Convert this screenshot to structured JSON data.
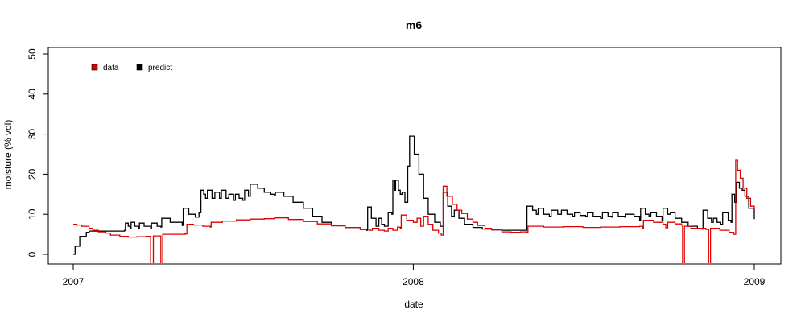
{
  "chart_data": {
    "type": "line",
    "title": "m6",
    "xlabel": "date",
    "ylabel": "moisture (% vol)",
    "xlim": [
      "2007-01-01",
      "2009-01-01"
    ],
    "ylim": [
      0,
      50
    ],
    "x_ticks": [
      "2007",
      "2008",
      "2009"
    ],
    "x_tick_dates": [
      "2007-01-01",
      "2008-01-01",
      "2009-01-01"
    ],
    "y_ticks": [
      0,
      10,
      20,
      30,
      40,
      50
    ],
    "grid": false,
    "legend_position": "top-left",
    "series": [
      {
        "name": "data",
        "color": "#dd0000",
        "points": [
          [
            "2007-01-01",
            7.5
          ],
          [
            "2007-01-05",
            7.3
          ],
          [
            "2007-01-10",
            7.0
          ],
          [
            "2007-01-15",
            7.0
          ],
          [
            "2007-01-18",
            6.5
          ],
          [
            "2007-01-22",
            6.0
          ],
          [
            "2007-01-28",
            5.6
          ],
          [
            "2007-02-05",
            5.3
          ],
          [
            "2007-02-10",
            4.8
          ],
          [
            "2007-02-20",
            4.5
          ],
          [
            "2007-03-01",
            4.3
          ],
          [
            "2007-03-10",
            4.4
          ],
          [
            "2007-03-20",
            4.5
          ],
          [
            "2007-03-24",
            4.5
          ],
          [
            "2007-03-25",
            -2.5
          ],
          [
            "2007-03-27",
            -2.5
          ],
          [
            "2007-03-28",
            4.6
          ],
          [
            "2007-04-04",
            4.6
          ],
          [
            "2007-04-05",
            -2.5
          ],
          [
            "2007-04-06",
            -2.5
          ],
          [
            "2007-04-07",
            5.0
          ],
          [
            "2007-04-20",
            5.0
          ],
          [
            "2007-05-01",
            5.1
          ],
          [
            "2007-05-03",
            7.5
          ],
          [
            "2007-05-10",
            7.3
          ],
          [
            "2007-05-20",
            7.0
          ],
          [
            "2007-05-28",
            6.8
          ],
          [
            "2007-05-29",
            8.0
          ],
          [
            "2007-06-10",
            8.3
          ],
          [
            "2007-06-25",
            8.6
          ],
          [
            "2007-07-10",
            8.8
          ],
          [
            "2007-07-25",
            8.9
          ],
          [
            "2007-08-05",
            9.1
          ],
          [
            "2007-08-20",
            8.7
          ],
          [
            "2007-09-05",
            8.2
          ],
          [
            "2007-09-20",
            7.6
          ],
          [
            "2007-10-05",
            7.1
          ],
          [
            "2007-10-20",
            6.7
          ],
          [
            "2007-11-05",
            6.3
          ],
          [
            "2007-11-15",
            6.0
          ],
          [
            "2007-11-18",
            6.5
          ],
          [
            "2007-11-25",
            6.0
          ],
          [
            "2007-12-01",
            5.8
          ],
          [
            "2007-12-05",
            6.5
          ],
          [
            "2007-12-10",
            6.0
          ],
          [
            "2007-12-15",
            6.8
          ],
          [
            "2007-12-18",
            6.5
          ],
          [
            "2007-12-19",
            9.8
          ],
          [
            "2007-12-25",
            8.5
          ],
          [
            "2008-01-01",
            8.0
          ],
          [
            "2008-01-05",
            9.0
          ],
          [
            "2008-01-09",
            7.0
          ],
          [
            "2008-01-12",
            9.5
          ],
          [
            "2008-01-17",
            7.5
          ],
          [
            "2008-01-22",
            6.0
          ],
          [
            "2008-01-28",
            5.3
          ],
          [
            "2008-01-31",
            4.8
          ],
          [
            "2008-02-02",
            17.0
          ],
          [
            "2008-02-06",
            14.5
          ],
          [
            "2008-02-12",
            12.5
          ],
          [
            "2008-02-17",
            11.0
          ],
          [
            "2008-02-22",
            10.2
          ],
          [
            "2008-02-28",
            8.8
          ],
          [
            "2008-03-05",
            8.0
          ],
          [
            "2008-03-10",
            7.2
          ],
          [
            "2008-03-18",
            6.5
          ],
          [
            "2008-03-25",
            6.1
          ],
          [
            "2008-04-05",
            5.6
          ],
          [
            "2008-04-15",
            5.5
          ],
          [
            "2008-04-25",
            5.6
          ],
          [
            "2008-05-02",
            5.5
          ],
          [
            "2008-05-03",
            7.0
          ],
          [
            "2008-05-20",
            6.8
          ],
          [
            "2008-06-10",
            6.9
          ],
          [
            "2008-07-01",
            6.7
          ],
          [
            "2008-07-20",
            6.8
          ],
          [
            "2008-08-10",
            6.9
          ],
          [
            "2008-08-31",
            7.0
          ],
          [
            "2008-09-03",
            6.5
          ],
          [
            "2008-09-04",
            8.5
          ],
          [
            "2008-09-15",
            8.0
          ],
          [
            "2008-09-25",
            7.5
          ],
          [
            "2008-09-28",
            6.6
          ],
          [
            "2008-09-30",
            8.0
          ],
          [
            "2008-10-08",
            7.6
          ],
          [
            "2008-10-15",
            7.3
          ],
          [
            "2008-10-16",
            -2.5
          ],
          [
            "2008-10-17",
            -2.5
          ],
          [
            "2008-10-18",
            7.0
          ],
          [
            "2008-10-25",
            6.5
          ],
          [
            "2008-11-10",
            6.2
          ],
          [
            "2008-11-13",
            -2.5
          ],
          [
            "2008-11-14",
            -2.5
          ],
          [
            "2008-11-15",
            6.5
          ],
          [
            "2008-11-25",
            6.0
          ],
          [
            "2008-12-05",
            5.5
          ],
          [
            "2008-12-10",
            5.0
          ],
          [
            "2008-12-12",
            23.5
          ],
          [
            "2008-12-14",
            21.0
          ],
          [
            "2008-12-17",
            19.0
          ],
          [
            "2008-12-20",
            16.5
          ],
          [
            "2008-12-24",
            14.0
          ],
          [
            "2008-12-28",
            12.0
          ],
          [
            "2009-01-01",
            11.2
          ]
        ]
      },
      {
        "name": "predict",
        "color": "#000000",
        "points": [
          [
            "2007-01-01",
            0.0
          ],
          [
            "2007-01-02",
            0.0
          ],
          [
            "2007-01-03",
            2.0
          ],
          [
            "2007-01-07",
            2.0
          ],
          [
            "2007-01-08",
            4.5
          ],
          [
            "2007-01-14",
            4.5
          ],
          [
            "2007-01-15",
            5.5
          ],
          [
            "2007-01-18",
            5.8
          ],
          [
            "2007-02-01",
            5.8
          ],
          [
            "2007-02-10",
            5.8
          ],
          [
            "2007-02-25",
            6.0
          ],
          [
            "2007-02-26",
            7.8
          ],
          [
            "2007-03-01",
            7.0
          ],
          [
            "2007-03-03",
            6.5
          ],
          [
            "2007-03-04",
            8.0
          ],
          [
            "2007-03-08",
            7.0
          ],
          [
            "2007-03-12",
            6.5
          ],
          [
            "2007-03-13",
            7.8
          ],
          [
            "2007-03-18",
            7.0
          ],
          [
            "2007-03-25",
            6.5
          ],
          [
            "2007-03-26",
            7.8
          ],
          [
            "2007-04-01",
            7.0
          ],
          [
            "2007-04-05",
            6.8
          ],
          [
            "2007-04-06",
            9.0
          ],
          [
            "2007-04-15",
            8.0
          ],
          [
            "2007-04-28",
            7.2
          ],
          [
            "2007-04-29",
            11.5
          ],
          [
            "2007-05-05",
            10.0
          ],
          [
            "2007-05-12",
            9.3
          ],
          [
            "2007-05-16",
            10.5
          ],
          [
            "2007-05-18",
            16.0
          ],
          [
            "2007-05-21",
            15.0
          ],
          [
            "2007-05-23",
            14.0
          ],
          [
            "2007-05-25",
            16.0
          ],
          [
            "2007-05-30",
            14.0
          ],
          [
            "2007-06-02",
            15.5
          ],
          [
            "2007-06-07",
            14.0
          ],
          [
            "2007-06-09",
            16.0
          ],
          [
            "2007-06-14",
            14.0
          ],
          [
            "2007-06-17",
            15.0
          ],
          [
            "2007-06-22",
            13.5
          ],
          [
            "2007-06-24",
            15.0
          ],
          [
            "2007-06-28",
            14.0
          ],
          [
            "2007-07-02",
            13.5
          ],
          [
            "2007-07-04",
            16.0
          ],
          [
            "2007-07-08",
            14.5
          ],
          [
            "2007-07-10",
            17.5
          ],
          [
            "2007-07-18",
            16.5
          ],
          [
            "2007-07-25",
            15.5
          ],
          [
            "2007-08-01",
            15.0
          ],
          [
            "2007-08-05",
            14.8
          ],
          [
            "2007-08-06",
            15.5
          ],
          [
            "2007-08-15",
            14.5
          ],
          [
            "2007-08-25",
            13.0
          ],
          [
            "2007-09-05",
            11.5
          ],
          [
            "2007-09-15",
            9.5
          ],
          [
            "2007-09-25",
            8.0
          ],
          [
            "2007-10-05",
            7.2
          ],
          [
            "2007-10-20",
            6.7
          ],
          [
            "2007-11-05",
            6.2
          ],
          [
            "2007-11-12",
            6.0
          ],
          [
            "2007-11-13",
            11.8
          ],
          [
            "2007-11-17",
            9.0
          ],
          [
            "2007-11-22",
            7.0
          ],
          [
            "2007-11-25",
            9.0
          ],
          [
            "2007-11-28",
            7.5
          ],
          [
            "2007-12-01",
            7.0
          ],
          [
            "2007-12-05",
            10.5
          ],
          [
            "2007-12-09",
            10.0
          ],
          [
            "2007-12-10",
            18.5
          ],
          [
            "2007-12-12",
            16.0
          ],
          [
            "2007-12-13",
            18.5
          ],
          [
            "2007-12-16",
            16.0
          ],
          [
            "2007-12-18",
            15.0
          ],
          [
            "2007-12-20",
            15.5
          ],
          [
            "2007-12-23",
            13.0
          ],
          [
            "2007-12-26",
            22.0
          ],
          [
            "2007-12-28",
            29.5
          ],
          [
            "2008-01-02",
            25.0
          ],
          [
            "2008-01-07",
            20.0
          ],
          [
            "2008-01-12",
            14.0
          ],
          [
            "2008-01-17",
            10.0
          ],
          [
            "2008-01-24",
            8.0
          ],
          [
            "2008-01-30",
            7.0
          ],
          [
            "2008-01-31",
            7.0
          ],
          [
            "2008-02-02",
            15.5
          ],
          [
            "2008-02-07",
            12.0
          ],
          [
            "2008-02-11",
            9.5
          ],
          [
            "2008-02-14",
            11.0
          ],
          [
            "2008-02-19",
            9.0
          ],
          [
            "2008-02-25",
            7.5
          ],
          [
            "2008-03-05",
            6.7
          ],
          [
            "2008-03-15",
            6.3
          ],
          [
            "2008-03-25",
            6.1
          ],
          [
            "2008-04-05",
            6.0
          ],
          [
            "2008-05-01",
            6.0
          ],
          [
            "2008-05-02",
            12.0
          ],
          [
            "2008-05-08",
            11.0
          ],
          [
            "2008-05-12",
            10.0
          ],
          [
            "2008-05-14",
            11.5
          ],
          [
            "2008-05-20",
            10.0
          ],
          [
            "2008-05-26",
            9.5
          ],
          [
            "2008-05-28",
            11.0
          ],
          [
            "2008-06-04",
            10.0
          ],
          [
            "2008-06-08",
            11.0
          ],
          [
            "2008-06-14",
            10.0
          ],
          [
            "2008-06-20",
            9.5
          ],
          [
            "2008-06-22",
            10.5
          ],
          [
            "2008-06-28",
            9.7
          ],
          [
            "2008-07-04",
            9.5
          ],
          [
            "2008-07-06",
            10.5
          ],
          [
            "2008-07-12",
            9.5
          ],
          [
            "2008-07-20",
            9.0
          ],
          [
            "2008-07-22",
            10.5
          ],
          [
            "2008-07-28",
            9.5
          ],
          [
            "2008-08-01",
            9.3
          ],
          [
            "2008-08-02",
            10.5
          ],
          [
            "2008-08-08",
            9.5
          ],
          [
            "2008-08-15",
            9.3
          ],
          [
            "2008-08-16",
            10.0
          ],
          [
            "2008-08-25",
            9.5
          ],
          [
            "2008-08-31",
            8.5
          ],
          [
            "2008-09-01",
            11.5
          ],
          [
            "2008-09-06",
            10.0
          ],
          [
            "2008-09-10",
            9.5
          ],
          [
            "2008-09-12",
            10.5
          ],
          [
            "2008-09-18",
            9.5
          ],
          [
            "2008-09-24",
            8.5
          ],
          [
            "2008-09-25",
            11.5
          ],
          [
            "2008-09-30",
            10.0
          ],
          [
            "2008-10-03",
            10.5
          ],
          [
            "2008-10-08",
            9.0
          ],
          [
            "2008-10-15",
            8.0
          ],
          [
            "2008-10-22",
            7.0
          ],
          [
            "2008-11-01",
            6.5
          ],
          [
            "2008-11-06",
            6.3
          ],
          [
            "2008-11-07",
            11.0
          ],
          [
            "2008-11-12",
            9.0
          ],
          [
            "2008-11-16",
            8.0
          ],
          [
            "2008-11-18",
            9.0
          ],
          [
            "2008-11-22",
            8.0
          ],
          [
            "2008-11-26",
            7.5
          ],
          [
            "2008-11-28",
            10.5
          ],
          [
            "2008-12-04",
            8.5
          ],
          [
            "2008-12-07",
            8.0
          ],
          [
            "2008-12-08",
            15.0
          ],
          [
            "2008-12-11",
            13.0
          ],
          [
            "2008-12-13",
            18.0
          ],
          [
            "2008-12-16",
            16.5
          ],
          [
            "2008-12-19",
            16.0
          ],
          [
            "2008-12-22",
            14.5
          ],
          [
            "2008-12-26",
            11.5
          ],
          [
            "2009-01-01",
            8.8
          ]
        ]
      }
    ]
  }
}
